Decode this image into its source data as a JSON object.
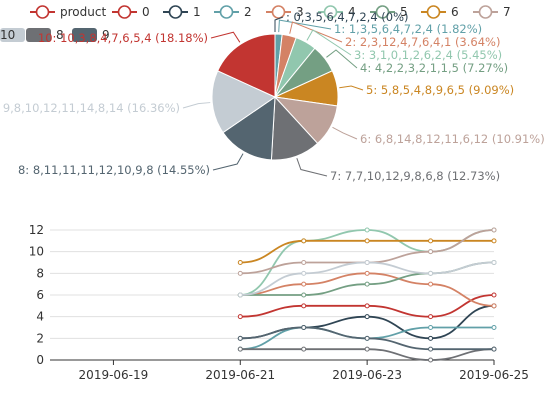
{
  "palette": [
    "#c23531",
    "#2f4554",
    "#61a0a8",
    "#d48265",
    "#91c7ae",
    "#749f83",
    "#ca8622",
    "#bda29a",
    "#6e7074",
    "#546570",
    "#c4ccd3"
  ],
  "legend": {
    "items": [
      "product",
      "0",
      "1",
      "2",
      "3",
      "4",
      "5",
      "6",
      "7",
      "8",
      "9",
      "10"
    ]
  },
  "chart_data": [
    {
      "type": "pie",
      "slices": [
        {
          "name": "",
          "values_text": "0,3,5,6,4,7,2,4",
          "percent": "0%",
          "value": 0
        },
        {
          "name": "1",
          "values_text": "1,3,5,6,4,7,2,4",
          "percent": "1.82%",
          "value": 1
        },
        {
          "name": "2",
          "values_text": "2,3,12,4,7,6,4,1",
          "percent": "3.64%",
          "value": 2
        },
        {
          "name": "3",
          "values_text": "3,1,0,1,2,6,2,4",
          "percent": "5.45%",
          "value": 3
        },
        {
          "name": "4",
          "values_text": "4,2,2,3,2,1,1,5",
          "percent": "7.27%",
          "value": 4
        },
        {
          "name": "5",
          "values_text": "5,8,5,4,8,9,6,5",
          "percent": "9.09%",
          "value": 5
        },
        {
          "name": "6",
          "values_text": "6,8,14,8,12,11,6,12",
          "percent": "10.91%",
          "value": 6
        },
        {
          "name": "7",
          "values_text": "7,7,10,12,9,8,6,8",
          "percent": "12.73%",
          "value": 7
        },
        {
          "name": "8",
          "values_text": "8,11,11,11,12,10,9,8",
          "percent": "14.55%",
          "value": 8
        },
        {
          "name": "9",
          "values_text": "9,8,10,12,11,14,8,14",
          "percent": "16.36%",
          "value": 9
        },
        {
          "name": "10",
          "values_text": "10,3,8,4,7,6,5,4",
          "percent": "18.18%",
          "value": 10
        }
      ]
    },
    {
      "type": "line",
      "x_ticks": [
        "2019-06-19",
        "2019-06-21",
        "2019-06-23",
        "2019-06-25"
      ],
      "y_ticks": [
        "0",
        "2",
        "4",
        "6",
        "8",
        "10",
        "12"
      ],
      "ylim": [
        0,
        12
      ],
      "x_dates": [
        "2019-06-18",
        "2019-06-19",
        "2019-06-20",
        "2019-06-21",
        "2019-06-22",
        "2019-06-23",
        "2019-06-24",
        "2019-06-25"
      ],
      "series": [
        {
          "name": "0",
          "dates": [
            "2019-06-21",
            "2019-06-22",
            "2019-06-23",
            "2019-06-24",
            "2019-06-25"
          ],
          "values": [
            4,
            5,
            5,
            4,
            6
          ]
        },
        {
          "name": "1",
          "dates": [
            "2019-06-21",
            "2019-06-22",
            "2019-06-23",
            "2019-06-24",
            "2019-06-25"
          ],
          "values": [
            2,
            3,
            4,
            2,
            5
          ]
        },
        {
          "name": "2",
          "dates": [
            "2019-06-21",
            "2019-06-22",
            "2019-06-23",
            "2019-06-24",
            "2019-06-25"
          ],
          "values": [
            1,
            3,
            2,
            3,
            3
          ]
        },
        {
          "name": "3",
          "dates": [
            "2019-06-21",
            "2019-06-22",
            "2019-06-23",
            "2019-06-24",
            "2019-06-25"
          ],
          "values": [
            6,
            7,
            8,
            7,
            5
          ]
        },
        {
          "name": "4",
          "dates": [
            "2019-06-21",
            "2019-06-22",
            "2019-06-23",
            "2019-06-24",
            "2019-06-25"
          ],
          "values": [
            6,
            11,
            12,
            10,
            12
          ]
        },
        {
          "name": "5",
          "dates": [
            "2019-06-21",
            "2019-06-22",
            "2019-06-23",
            "2019-06-24",
            "2019-06-25"
          ],
          "values": [
            6,
            6,
            7,
            8,
            9
          ]
        },
        {
          "name": "6",
          "dates": [
            "2019-06-21",
            "2019-06-22",
            "2019-06-23",
            "2019-06-24",
            "2019-06-25"
          ],
          "values": [
            9,
            11,
            11,
            11,
            11
          ]
        },
        {
          "name": "7",
          "dates": [
            "2019-06-21",
            "2019-06-22",
            "2019-06-23",
            "2019-06-24",
            "2019-06-25"
          ],
          "values": [
            8,
            9,
            9,
            10,
            12
          ]
        },
        {
          "name": "8",
          "dates": [
            "2019-06-21",
            "2019-06-22",
            "2019-06-23",
            "2019-06-24",
            "2019-06-25"
          ],
          "values": [
            1,
            1,
            1,
            0,
            1
          ]
        },
        {
          "name": "9",
          "dates": [
            "2019-06-21",
            "2019-06-22",
            "2019-06-23",
            "2019-06-24",
            "2019-06-25"
          ],
          "values": [
            2,
            3,
            2,
            1,
            1
          ]
        },
        {
          "name": "10",
          "dates": [
            "2019-06-21",
            "2019-06-22",
            "2019-06-23",
            "2019-06-24",
            "2019-06-25"
          ],
          "values": [
            6,
            8,
            9,
            8,
            9
          ]
        }
      ]
    }
  ]
}
